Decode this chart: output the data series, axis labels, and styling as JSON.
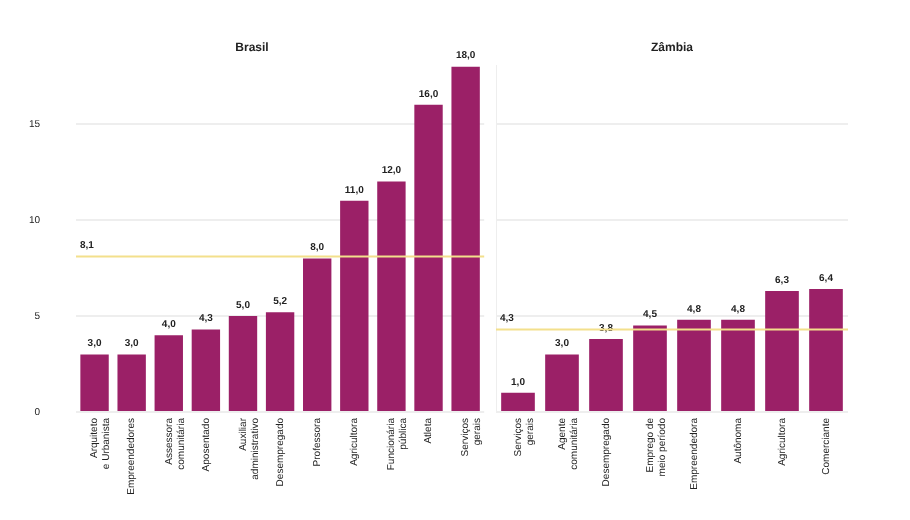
{
  "chart_data": [
    {
      "type": "bar",
      "title": "Brasil",
      "categories": [
        "Arquiteto e Urbanista",
        "Empreendedores",
        "Assessora comunitária",
        "Aposentado",
        "Auxiliar administrativo",
        "Desempregado",
        "Professora",
        "Agricultora",
        "Funcionária pública",
        "Atleta",
        "Serviços gerais"
      ],
      "values": [
        3.0,
        3.0,
        4.0,
        4.3,
        5.0,
        5.2,
        8.0,
        11.0,
        12.0,
        16.0,
        18.0
      ],
      "color": "#9b2067",
      "value_labels": [
        "3,0",
        "3,0",
        "4,0",
        "4,3",
        "5,0",
        "5,2",
        "8,0",
        "11,0",
        "12,0",
        "16,0",
        "18,0"
      ],
      "ylim": [
        0,
        18
      ],
      "yticks": [
        0,
        5,
        10,
        15
      ],
      "grid": "y",
      "ref_lines": [
        {
          "axis": "y",
          "value": 8.1,
          "label": "8,1",
          "color": "#f3e08c"
        }
      ]
    },
    {
      "type": "bar",
      "title": "Zâmbia",
      "categories": [
        "Serviços gerais",
        "Agente comunitária",
        "Desempregado",
        "Emprego de meio período",
        "Empreendedora",
        "Autônoma",
        "Agricultora",
        "Comerciante"
      ],
      "values": [
        1.0,
        3.0,
        3.8,
        4.5,
        4.8,
        4.8,
        6.3,
        6.4
      ],
      "color": "#9b2067",
      "value_labels": [
        "1,0",
        "3,0",
        "3,8",
        "4,5",
        "4,8",
        "4,8",
        "6,3",
        "6,4"
      ],
      "ylim": [
        0,
        18
      ],
      "yticks": [
        0,
        5,
        10,
        15
      ],
      "grid": "y",
      "tick_labels": "x",
      "ref_lines": [
        {
          "axis": "y",
          "value": 4.3,
          "label": "4,3",
          "color": "#f3e08c"
        }
      ]
    }
  ]
}
